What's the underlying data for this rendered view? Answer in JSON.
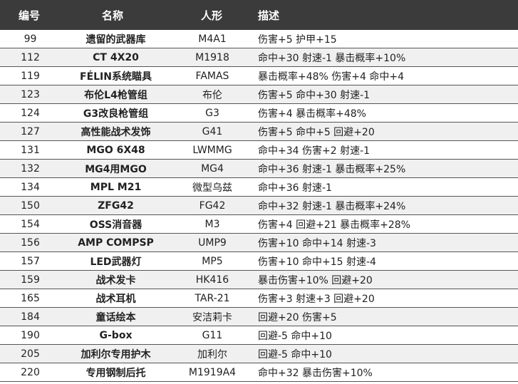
{
  "table": {
    "header": [
      "编号",
      "名称",
      "人形",
      "描述"
    ],
    "rows": [
      [
        99,
        "遗留的武器库",
        "M4A1",
        "伤害+5 护甲+15"
      ],
      [
        112,
        "CT 4X20",
        "M1918",
        "命中+30 射速-1 暴击概率+10%"
      ],
      [
        119,
        "FÉLIN系统瞄具",
        "FAMAS",
        "暴击概率+48% 伤害+4 命中+4"
      ],
      [
        123,
        "布伦L4枪管组",
        "布伦",
        "伤害+5 命中+30 射速-1"
      ],
      [
        124,
        "G3改良枪管组",
        "G3",
        "伤害+4 暴击概率+48%"
      ],
      [
        127,
        "高性能战术发饰",
        "G41",
        "伤害+5 命中+5 回避+20"
      ],
      [
        131,
        "MGO 6X48",
        "LWMMG",
        "命中+34 伤害+2 射速-1"
      ],
      [
        132,
        "MG4用MGO",
        "MG4",
        "命中+36 射速-1 暴击概率+25%"
      ],
      [
        134,
        "MPL M21",
        "微型乌兹",
        "命中+36 射速-1"
      ],
      [
        150,
        "ZFG42",
        "FG42",
        "命中+32 射速-1 暴击概率+24%"
      ],
      [
        154,
        "OSS消音器",
        "M3",
        "伤害+4 回避+21 暴击概率+28%"
      ],
      [
        156,
        "AMP COMPSP",
        "UMP9",
        "伤害+10 命中+14 射速-3"
      ],
      [
        157,
        "LED武器灯",
        "MP5",
        "伤害+10 命中+15 射速-4"
      ],
      [
        159,
        "战术发卡",
        "HK416",
        "暴击伤害+10% 回避+20"
      ],
      [
        165,
        "战术耳机",
        "TAR-21",
        "伤害+3 射速+3 回避+20"
      ],
      [
        184,
        "童话绘本",
        "安洁莉卡",
        "回避+20 伤害+5"
      ],
      [
        190,
        "G-box",
        "G11",
        "回避-5 命中+10"
      ],
      [
        205,
        "加利尔专用护木",
        "加利尔",
        "回避-5 命中+10"
      ],
      [
        220,
        "专用钢制后托",
        "M1919A4",
        "命中+32 暴击伤害+10%"
      ]
    ]
  }
}
